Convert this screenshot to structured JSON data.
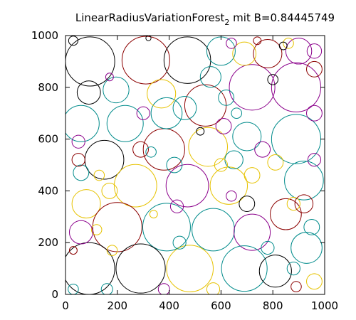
{
  "chart_data": {
    "type": "scatter",
    "title_main": "LinearRadiusVariationForest",
    "title_subscript": "2",
    "title_suffix": " mit B=0.84445749",
    "xlim": [
      0,
      1000
    ],
    "ylim": [
      0,
      1000
    ],
    "x_ticks": [
      "0",
      "200",
      "400",
      "600",
      "800",
      "1000"
    ],
    "y_ticks": [
      "0",
      "200",
      "400",
      "600",
      "800",
      "1000"
    ],
    "grid": false,
    "marker": "circle",
    "circles": [
      {
        "x": 95,
        "y": 900,
        "r": 95,
        "color": "#000000"
      },
      {
        "x": 310,
        "y": 905,
        "r": 92,
        "color": "#8b0000"
      },
      {
        "x": 470,
        "y": 905,
        "r": 90,
        "color": "#000000"
      },
      {
        "x": 720,
        "y": 800,
        "r": 88,
        "color": "#8b008b"
      },
      {
        "x": 890,
        "y": 800,
        "r": 95,
        "color": "#8b008b"
      },
      {
        "x": 890,
        "y": 600,
        "r": 95,
        "color": "#008b8b"
      },
      {
        "x": 150,
        "y": 520,
        "r": 75,
        "color": "#000000"
      },
      {
        "x": 380,
        "y": 560,
        "r": 80,
        "color": "#8b0000"
      },
      {
        "x": 270,
        "y": 420,
        "r": 82,
        "color": "#e6c200"
      },
      {
        "x": 470,
        "y": 420,
        "r": 82,
        "color": "#8b008b"
      },
      {
        "x": 630,
        "y": 420,
        "r": 72,
        "color": "#e6c200"
      },
      {
        "x": 920,
        "y": 440,
        "r": 75,
        "color": "#008b8b"
      },
      {
        "x": 80,
        "y": 350,
        "r": 55,
        "color": "#e6c200"
      },
      {
        "x": 200,
        "y": 260,
        "r": 95,
        "color": "#8b0000"
      },
      {
        "x": 390,
        "y": 260,
        "r": 92,
        "color": "#008b8b"
      },
      {
        "x": 570,
        "y": 250,
        "r": 82,
        "color": "#008b8b"
      },
      {
        "x": 720,
        "y": 240,
        "r": 70,
        "color": "#8b008b"
      },
      {
        "x": 850,
        "y": 310,
        "r": 60,
        "color": "#8b0000"
      },
      {
        "x": 90,
        "y": 100,
        "r": 100,
        "color": "#000000"
      },
      {
        "x": 290,
        "y": 100,
        "r": 95,
        "color": "#000000"
      },
      {
        "x": 480,
        "y": 100,
        "r": 90,
        "color": "#e6c200"
      },
      {
        "x": 690,
        "y": 100,
        "r": 88,
        "color": "#008b8b"
      },
      {
        "x": 810,
        "y": 90,
        "r": 62,
        "color": "#000000"
      },
      {
        "x": 930,
        "y": 180,
        "r": 60,
        "color": "#008b8b"
      },
      {
        "x": 550,
        "y": 570,
        "r": 75,
        "color": "#e6c200"
      },
      {
        "x": 700,
        "y": 610,
        "r": 55,
        "color": "#008b8b"
      },
      {
        "x": 230,
        "y": 660,
        "r": 70,
        "color": "#008b8b"
      },
      {
        "x": 60,
        "y": 660,
        "r": 70,
        "color": "#008b8b"
      },
      {
        "x": 390,
        "y": 700,
        "r": 60,
        "color": "#008b8b"
      },
      {
        "x": 540,
        "y": 730,
        "r": 80,
        "color": "#8b0000"
      },
      {
        "x": 195,
        "y": 790,
        "r": 50,
        "color": "#008b8b"
      },
      {
        "x": 370,
        "y": 775,
        "r": 55,
        "color": "#e6c200"
      },
      {
        "x": 460,
        "y": 720,
        "r": 45,
        "color": "#008b8b"
      },
      {
        "x": 560,
        "y": 840,
        "r": 40,
        "color": "#008b8b"
      },
      {
        "x": 900,
        "y": 940,
        "r": 50,
        "color": "#8b008b"
      },
      {
        "x": 780,
        "y": 930,
        "r": 55,
        "color": "#8b0000"
      },
      {
        "x": 600,
        "y": 940,
        "r": 55,
        "color": "#008b8b"
      },
      {
        "x": 690,
        "y": 930,
        "r": 45,
        "color": "#e6c200"
      },
      {
        "x": 90,
        "y": 780,
        "r": 45,
        "color": "#000000"
      },
      {
        "x": 50,
        "y": 590,
        "r": 25,
        "color": "#8b008b"
      },
      {
        "x": 650,
        "y": 520,
        "r": 35,
        "color": "#008b8b"
      },
      {
        "x": 810,
        "y": 510,
        "r": 30,
        "color": "#e6c200"
      },
      {
        "x": 760,
        "y": 560,
        "r": 30,
        "color": "#8b008b"
      },
      {
        "x": 880,
        "y": 350,
        "r": 25,
        "color": "#e6c200"
      },
      {
        "x": 950,
        "y": 260,
        "r": 30,
        "color": "#008b8b"
      },
      {
        "x": 920,
        "y": 350,
        "r": 35,
        "color": "#8b0000"
      },
      {
        "x": 700,
        "y": 350,
        "r": 30,
        "color": "#000000"
      },
      {
        "x": 430,
        "y": 340,
        "r": 25,
        "color": "#8b008b"
      },
      {
        "x": 130,
        "y": 460,
        "r": 20,
        "color": "#e6c200"
      },
      {
        "x": 170,
        "y": 400,
        "r": 30,
        "color": "#e6c200"
      },
      {
        "x": 60,
        "y": 470,
        "r": 30,
        "color": "#008b8b"
      },
      {
        "x": 50,
        "y": 520,
        "r": 25,
        "color": "#8b0000"
      },
      {
        "x": 120,
        "y": 250,
        "r": 20,
        "color": "#e6c200"
      },
      {
        "x": 60,
        "y": 240,
        "r": 45,
        "color": "#8b008b"
      },
      {
        "x": 610,
        "y": 650,
        "r": 30,
        "color": "#8b008b"
      },
      {
        "x": 660,
        "y": 700,
        "r": 20,
        "color": "#008b8b"
      },
      {
        "x": 420,
        "y": 500,
        "r": 30,
        "color": "#008b8b"
      },
      {
        "x": 600,
        "y": 500,
        "r": 25,
        "color": "#e6c200"
      },
      {
        "x": 960,
        "y": 520,
        "r": 25,
        "color": "#8b008b"
      },
      {
        "x": 960,
        "y": 700,
        "r": 30,
        "color": "#8b008b"
      },
      {
        "x": 960,
        "y": 870,
        "r": 30,
        "color": "#8b0000"
      },
      {
        "x": 960,
        "y": 940,
        "r": 28,
        "color": "#8b008b"
      },
      {
        "x": 860,
        "y": 970,
        "r": 20,
        "color": "#e6c200"
      },
      {
        "x": 740,
        "y": 980,
        "r": 15,
        "color": "#8b0000"
      },
      {
        "x": 800,
        "y": 830,
        "r": 20,
        "color": "#000000"
      },
      {
        "x": 640,
        "y": 970,
        "r": 20,
        "color": "#8b008b"
      },
      {
        "x": 840,
        "y": 960,
        "r": 15,
        "color": "#000000"
      },
      {
        "x": 30,
        "y": 980,
        "r": 18,
        "color": "#000000"
      },
      {
        "x": 170,
        "y": 840,
        "r": 15,
        "color": "#8b008b"
      },
      {
        "x": 440,
        "y": 200,
        "r": 25,
        "color": "#008b8b"
      },
      {
        "x": 780,
        "y": 180,
        "r": 25,
        "color": "#008b8b"
      },
      {
        "x": 340,
        "y": 310,
        "r": 15,
        "color": "#e6c200"
      },
      {
        "x": 180,
        "y": 170,
        "r": 20,
        "color": "#e6c200"
      },
      {
        "x": 30,
        "y": 170,
        "r": 15,
        "color": "#8b0000"
      },
      {
        "x": 30,
        "y": 20,
        "r": 20,
        "color": "#008b8b"
      },
      {
        "x": 160,
        "y": 20,
        "r": 22,
        "color": "#008b8b"
      },
      {
        "x": 380,
        "y": 20,
        "r": 22,
        "color": "#8b008b"
      },
      {
        "x": 570,
        "y": 20,
        "r": 25,
        "color": "#e6c200"
      },
      {
        "x": 960,
        "y": 50,
        "r": 30,
        "color": "#e6c200"
      },
      {
        "x": 890,
        "y": 30,
        "r": 20,
        "color": "#8b0000"
      },
      {
        "x": 880,
        "y": 100,
        "r": 25,
        "color": "#008b8b"
      },
      {
        "x": 640,
        "y": 380,
        "r": 20,
        "color": "#8b008b"
      },
      {
        "x": 720,
        "y": 460,
        "r": 30,
        "color": "#e6c200"
      },
      {
        "x": 290,
        "y": 560,
        "r": 30,
        "color": "#8b0000"
      },
      {
        "x": 300,
        "y": 700,
        "r": 25,
        "color": "#8b008b"
      },
      {
        "x": 620,
        "y": 760,
        "r": 30,
        "color": "#008b8b"
      },
      {
        "x": 320,
        "y": 990,
        "r": 10,
        "color": "#000000"
      },
      {
        "x": 330,
        "y": 550,
        "r": 20,
        "color": "#008b8b"
      },
      {
        "x": 520,
        "y": 630,
        "r": 15,
        "color": "#000000"
      }
    ]
  }
}
